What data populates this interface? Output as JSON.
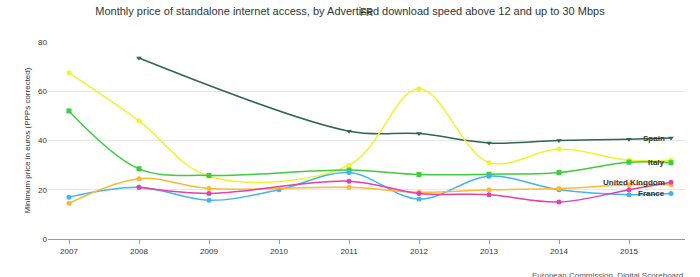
{
  "chart_data": {
    "type": "line",
    "title": "Monthly price of standalone internet access, by Advertised download speed above 12 and up to 30 Mbps",
    "subtitle": "FR",
    "y_label": "Minimum price in euros (PPPs corrected)",
    "source": "European Commission, Digital Scoreboard",
    "xlim": [
      2006.7,
      2015.8
    ],
    "xticks": [
      2007,
      2008,
      2009,
      2010,
      2011,
      2012,
      2013,
      2014,
      2015
    ],
    "ylim": [
      0,
      80
    ],
    "yticks": [
      0,
      20,
      40,
      60,
      80
    ],
    "grid": true,
    "series": [
      {
        "name": "Spain",
        "color": "#2f6650",
        "marker": "triangle-down",
        "x": [
          2008,
          2011,
          2012,
          2013,
          2014,
          2015,
          2015.6
        ],
        "values": [
          73.5,
          43.8,
          42.8,
          39,
          40,
          40.5,
          41
        ]
      },
      {
        "color": "#f2f230",
        "marker": "circle",
        "x": [
          2007,
          2008,
          2009,
          2011,
          2012,
          2013,
          2014,
          2015,
          2015.6
        ],
        "values": [
          67.5,
          48,
          25.5,
          30,
          61,
          31,
          36.5,
          32,
          32
        ]
      },
      {
        "name": "Italy",
        "color": "#3fcc3f",
        "marker": "square",
        "x": [
          2007,
          2008,
          2009,
          2011,
          2012,
          2013,
          2014,
          2015,
          2015.6
        ],
        "values": [
          52,
          28.5,
          25.8,
          28,
          26.2,
          26.3,
          27,
          31.2,
          31
        ]
      },
      {
        "name": "France",
        "color": "#44b4ec",
        "marker": "circle",
        "x": [
          2007,
          2008,
          2009,
          2010,
          2011,
          2012,
          2013,
          2014,
          2015,
          2015.6
        ],
        "values": [
          17,
          21,
          15.7,
          20,
          27,
          16.2,
          25.5,
          20,
          18,
          18.5
        ]
      },
      {
        "color": "#ffb833",
        "marker": "circle",
        "x": [
          2007,
          2008,
          2009,
          2011,
          2012,
          2013,
          2014,
          2015,
          2015.6
        ],
        "values": [
          14.5,
          24.5,
          20.5,
          21,
          19,
          20,
          20.5,
          22,
          22
        ]
      },
      {
        "name": "United Kingdom",
        "color": "#e040b0",
        "marker": "circle",
        "x": [
          2008,
          2009,
          2011,
          2012,
          2013,
          2014,
          2015,
          2015.6
        ],
        "values": [
          21,
          18.5,
          23.5,
          18.5,
          18,
          15,
          20,
          23
        ]
      }
    ]
  }
}
